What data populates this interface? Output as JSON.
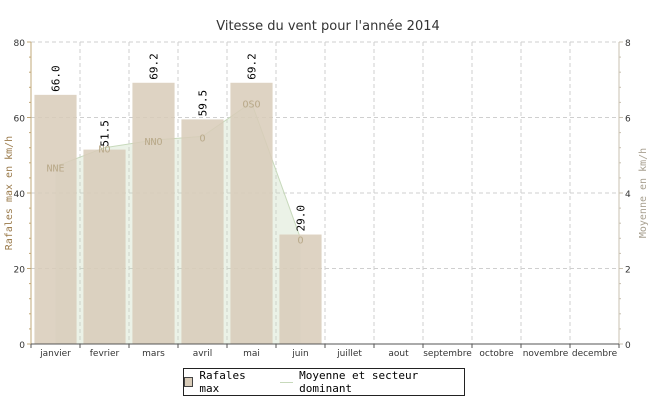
{
  "chart_data": {
    "type": "bar",
    "title": "Vitesse du vent pour l'année 2014",
    "ylabel": "Rafales max en km/h",
    "y2label": "Moyenne en km/h",
    "ylim": [
      0,
      80
    ],
    "y2lim": [
      0,
      8
    ],
    "yticks": [
      "0",
      "20",
      "40",
      "60",
      "80"
    ],
    "y2ticks": [
      "0",
      "2",
      "4",
      "6",
      "8"
    ],
    "grid": true,
    "categories": [
      "janvier",
      "fevrier",
      "mars",
      "avril",
      "mai",
      "juin",
      "juillet",
      "aout",
      "septembre",
      "octobre",
      "novembre",
      "decembre"
    ],
    "series": [
      {
        "name": "Rafales max",
        "type": "bar",
        "axis": "left",
        "color": "#d8cbb8",
        "values": [
          66.0,
          51.5,
          69.2,
          59.5,
          69.2,
          29.0,
          null,
          null,
          null,
          null,
          null,
          null
        ],
        "labels": [
          "66.0",
          "51.5",
          "69.2",
          "59.5",
          "69.2",
          "29.0",
          "",
          "",
          "",
          "",
          "",
          ""
        ]
      },
      {
        "name": "Moyenne et secteur dominant",
        "type": "area",
        "axis": "right",
        "color": "#c7d9bb",
        "values": [
          4.7,
          5.2,
          5.4,
          5.5,
          6.4,
          2.8,
          null,
          null,
          null,
          null,
          null,
          null
        ],
        "sectors": [
          "NNE",
          "NO",
          "NNO",
          "O",
          "OSO",
          "O",
          "",
          "",
          "",
          "",
          "",
          ""
        ]
      }
    ],
    "legend": "bottom-center"
  }
}
